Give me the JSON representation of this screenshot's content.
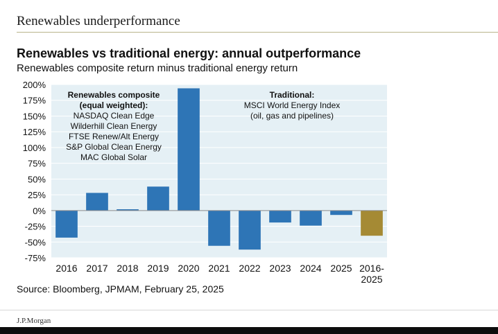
{
  "page": {
    "title": "Renewables underperformance",
    "source": "Source: Bloomberg, JPMAM, February 25, 2025",
    "logo": "J.P.Morgan"
  },
  "colors": {
    "plot_background": "#e5f0f5",
    "bar_annual": "#2e75b6",
    "bar_cumulative": "#a58a34",
    "grid": "#ffffff",
    "rule": "#b9b48a"
  },
  "chart_data": {
    "type": "bar",
    "title": "Renewables vs traditional energy: annual outperformance",
    "subtitle": "Renewables composite return minus traditional energy return",
    "categories": [
      "2016",
      "2017",
      "2018",
      "2019",
      "2020",
      "2021",
      "2022",
      "2023",
      "2024",
      "2025",
      "2016-2025"
    ],
    "category_lines": [
      [
        "2016"
      ],
      [
        "2017"
      ],
      [
        "2018"
      ],
      [
        "2019"
      ],
      [
        "2020"
      ],
      [
        "2021"
      ],
      [
        "2022"
      ],
      [
        "2023"
      ],
      [
        "2024"
      ],
      [
        "2025"
      ],
      [
        "2016-",
        "2025"
      ]
    ],
    "values": [
      -43,
      28,
      2,
      38,
      194,
      -56,
      -62,
      -19,
      -24,
      -7,
      -40
    ],
    "value_unit": "%",
    "ylim": [
      -75,
      200
    ],
    "yticks": [
      -75,
      -50,
      -25,
      0,
      25,
      50,
      75,
      100,
      125,
      150,
      175,
      200
    ],
    "grid": true,
    "annotations": [
      {
        "id": "renewables",
        "lines": [
          "Renewables composite",
          "(equal weighted):",
          "NASDAQ Clean Edge",
          "Wilderhill Clean Energy",
          "FTSE Renew/Alt Energy",
          "S&P Global Clean Energy",
          "MAC Global Solar"
        ],
        "bold_lines": 2
      },
      {
        "id": "traditional",
        "lines": [
          "Traditional:",
          "MSCI World Energy Index",
          "(oil, gas and pipelines)"
        ],
        "bold_lines": 1
      }
    ]
  }
}
